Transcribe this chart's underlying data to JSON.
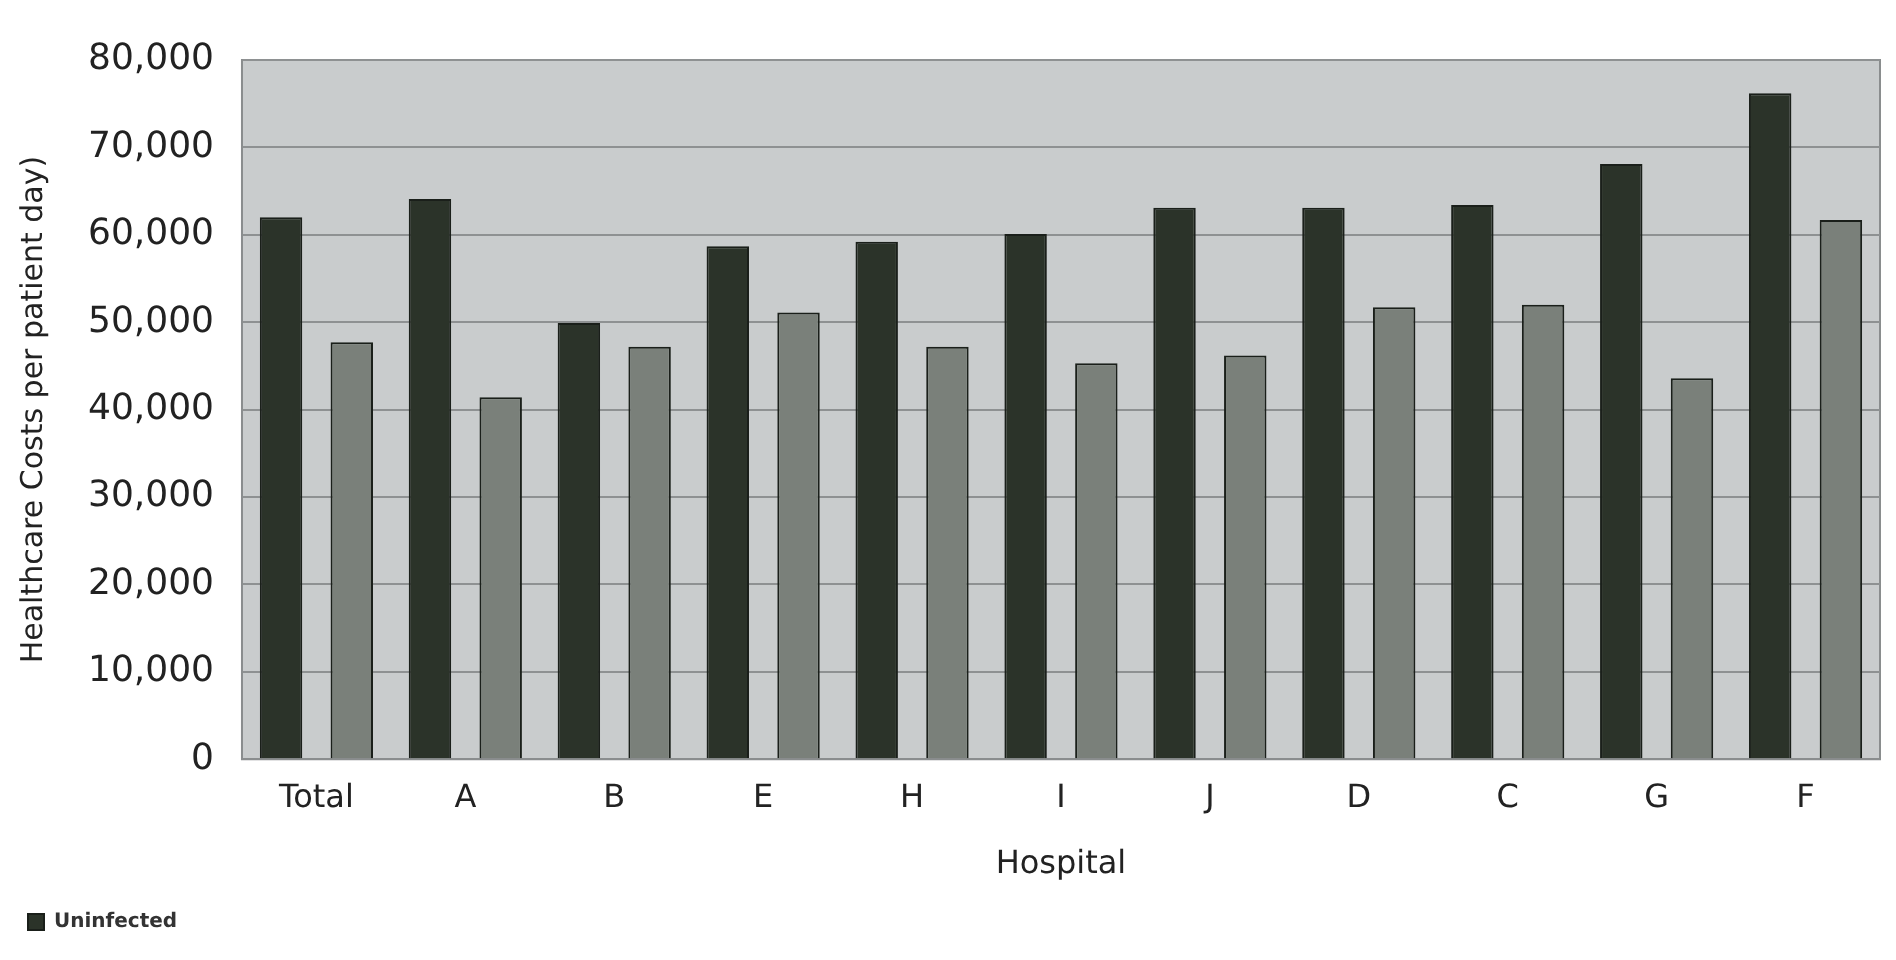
{
  "chart_data": {
    "type": "bar",
    "xlabel": "Hospital",
    "ylabel": "Healthcare Costs per patient day)",
    "categories": [
      "Total",
      "A",
      "B",
      "E",
      "H",
      "I",
      "J",
      "D",
      "C",
      "G",
      "F"
    ],
    "series": [
      {
        "name": "Uninfected",
        "color": "#2b3329",
        "values": [
          62000,
          64100,
          49900,
          58700,
          59200,
          60100,
          63100,
          63100,
          63400,
          68100,
          76200
        ]
      },
      {
        "color": "#7a807a",
        "values": [
          47700,
          41400,
          47200,
          51100,
          47200,
          45300,
          46200,
          51700,
          52000,
          43600,
          61700
        ]
      }
    ],
    "ylim": [
      0,
      80000
    ],
    "yticks": [
      {
        "value": 0,
        "label": "0"
      },
      {
        "value": 10000,
        "label": "10,000"
      },
      {
        "value": 20000,
        "label": "20,000"
      },
      {
        "value": 30000,
        "label": "30,000"
      },
      {
        "value": 40000,
        "label": "40,000"
      },
      {
        "value": 50000,
        "label": "50,000"
      },
      {
        "value": 60000,
        "label": "60,000"
      },
      {
        "value": 70000,
        "label": "70,000"
      },
      {
        "value": 80000,
        "label": "80,000"
      }
    ],
    "grid": "y",
    "legend": "bottom left"
  }
}
